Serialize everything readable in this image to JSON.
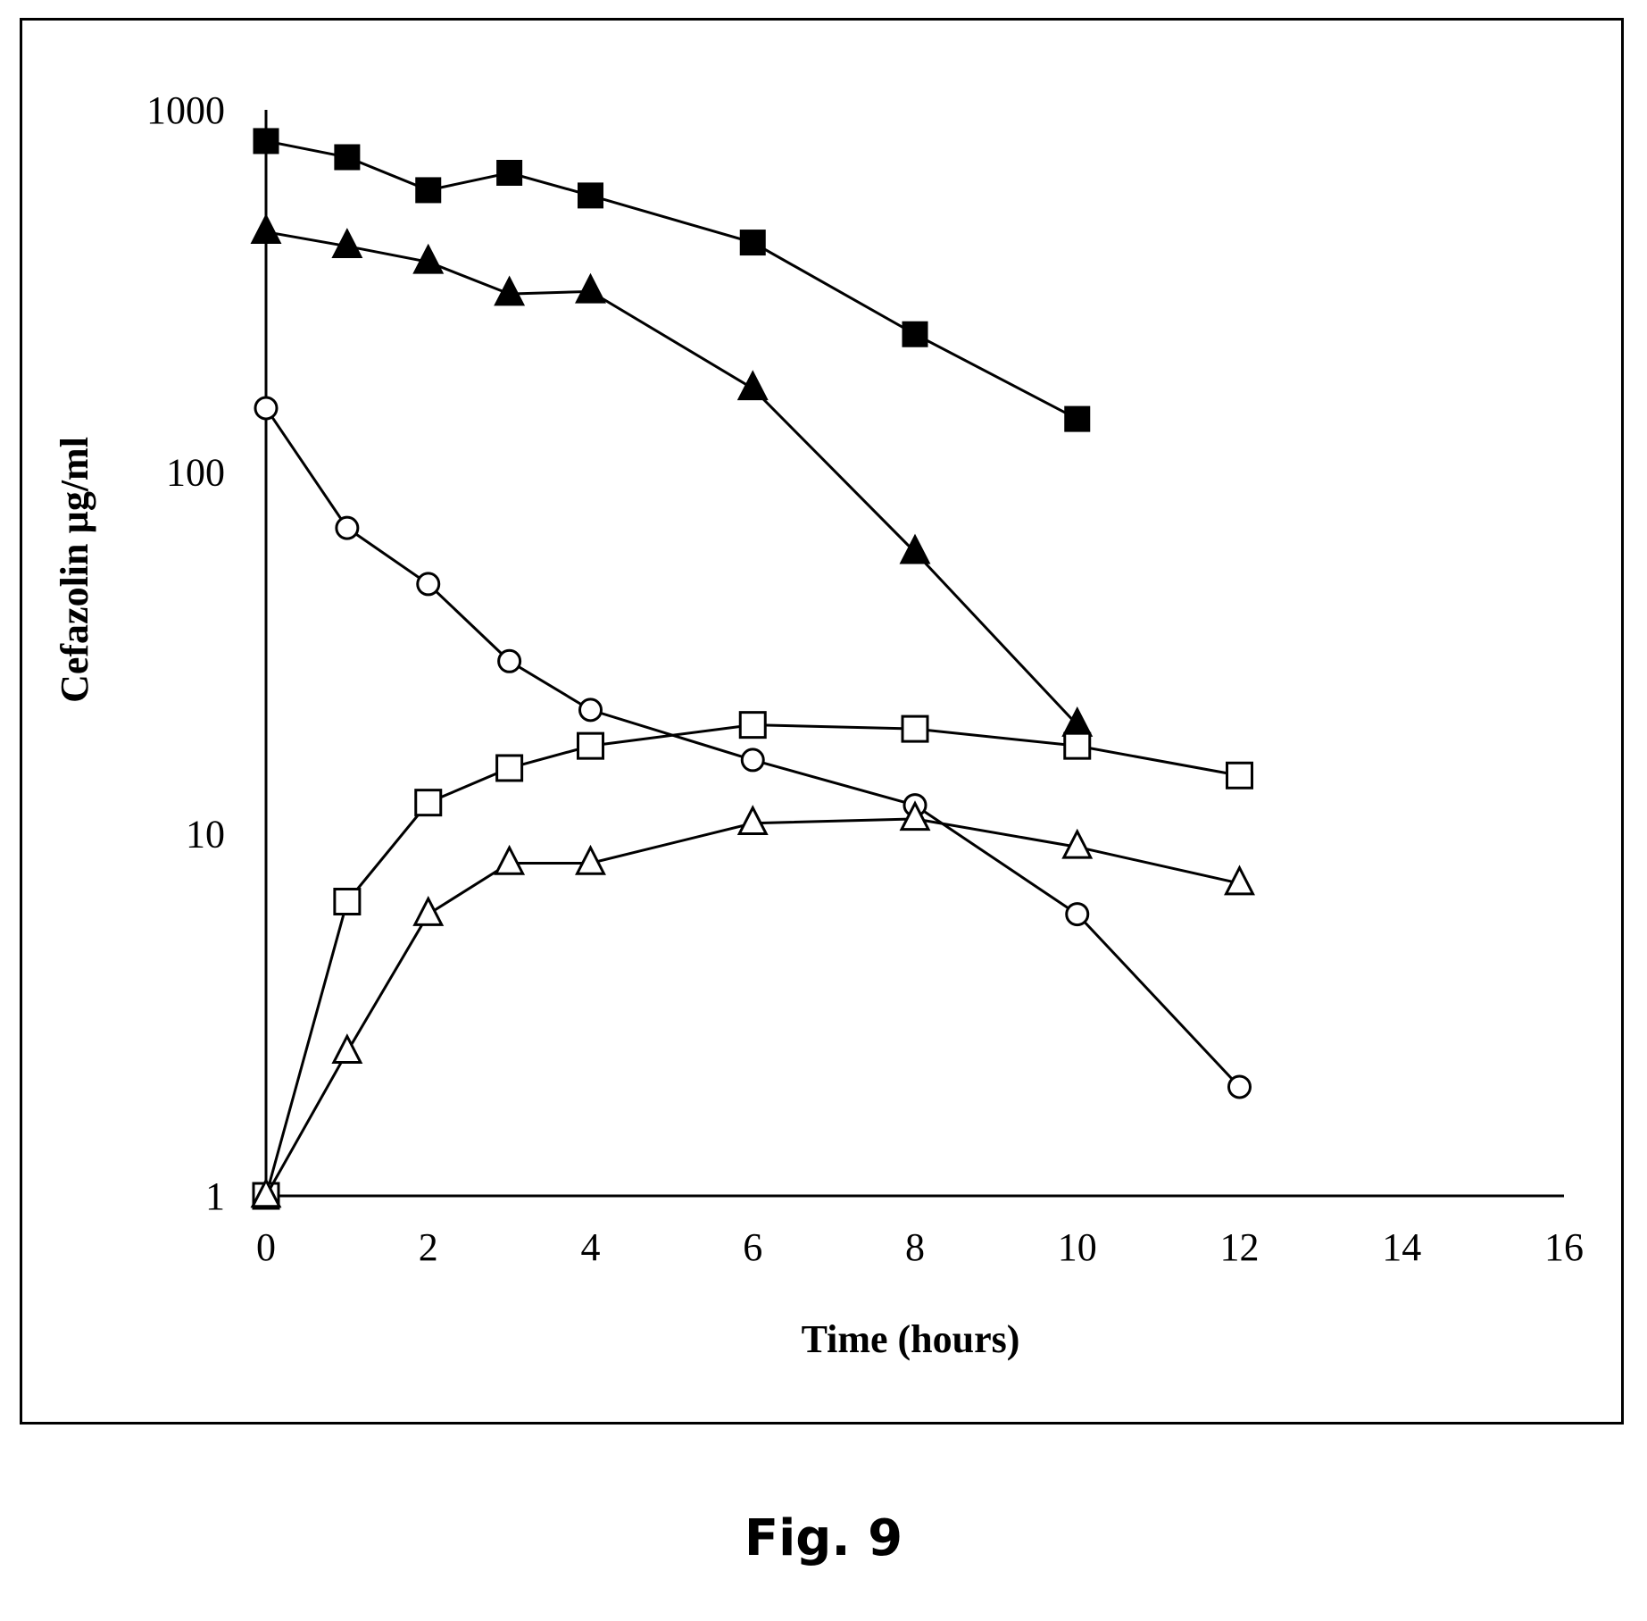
{
  "figure_label": "Fig. 9",
  "chart_data": {
    "type": "line",
    "title": "",
    "xlabel": "Time (hours)",
    "ylabel": "Cefazolin µg/ml",
    "xlim": [
      0,
      16
    ],
    "ylim": [
      1,
      1000
    ],
    "yscale": "log",
    "xticks": [
      0,
      2,
      4,
      6,
      8,
      10,
      12,
      14,
      16
    ],
    "yticks": [
      1,
      10,
      100,
      1000
    ],
    "xtick_labels": [
      "0",
      "2",
      "4",
      "6",
      "8",
      "10",
      "12",
      "14",
      "16"
    ],
    "ytick_labels": [
      "1",
      "10",
      "100",
      "1000"
    ],
    "grid": false,
    "legend": "none",
    "series": [
      {
        "marker": "filled-square",
        "x": [
          0,
          1,
          2,
          3,
          4,
          6,
          8,
          10
        ],
        "y": [
          820,
          740,
          600,
          670,
          580,
          430,
          240,
          140
        ]
      },
      {
        "marker": "filled-triangle",
        "x": [
          0,
          1,
          2,
          3,
          4,
          6,
          8,
          10
        ],
        "y": [
          460,
          420,
          380,
          310,
          315,
          170,
          60,
          20
        ]
      },
      {
        "marker": "open-circle",
        "x": [
          0,
          1,
          2,
          3,
          4,
          6,
          8,
          10,
          12
        ],
        "y": [
          150,
          70,
          49,
          30,
          22,
          16,
          12,
          6,
          2
        ]
      },
      {
        "marker": "open-square",
        "x": [
          0,
          1,
          2,
          3,
          4,
          6,
          8,
          10,
          12
        ],
        "y": [
          1,
          6.5,
          12.2,
          15.2,
          17.5,
          20,
          19.5,
          17.5,
          14.5
        ]
      },
      {
        "marker": "open-triangle",
        "x": [
          0,
          1,
          2,
          3,
          4,
          6,
          8,
          10,
          12
        ],
        "y": [
          1,
          2.5,
          6,
          8.3,
          8.3,
          10.7,
          11,
          9.2,
          7.3
        ]
      }
    ]
  }
}
